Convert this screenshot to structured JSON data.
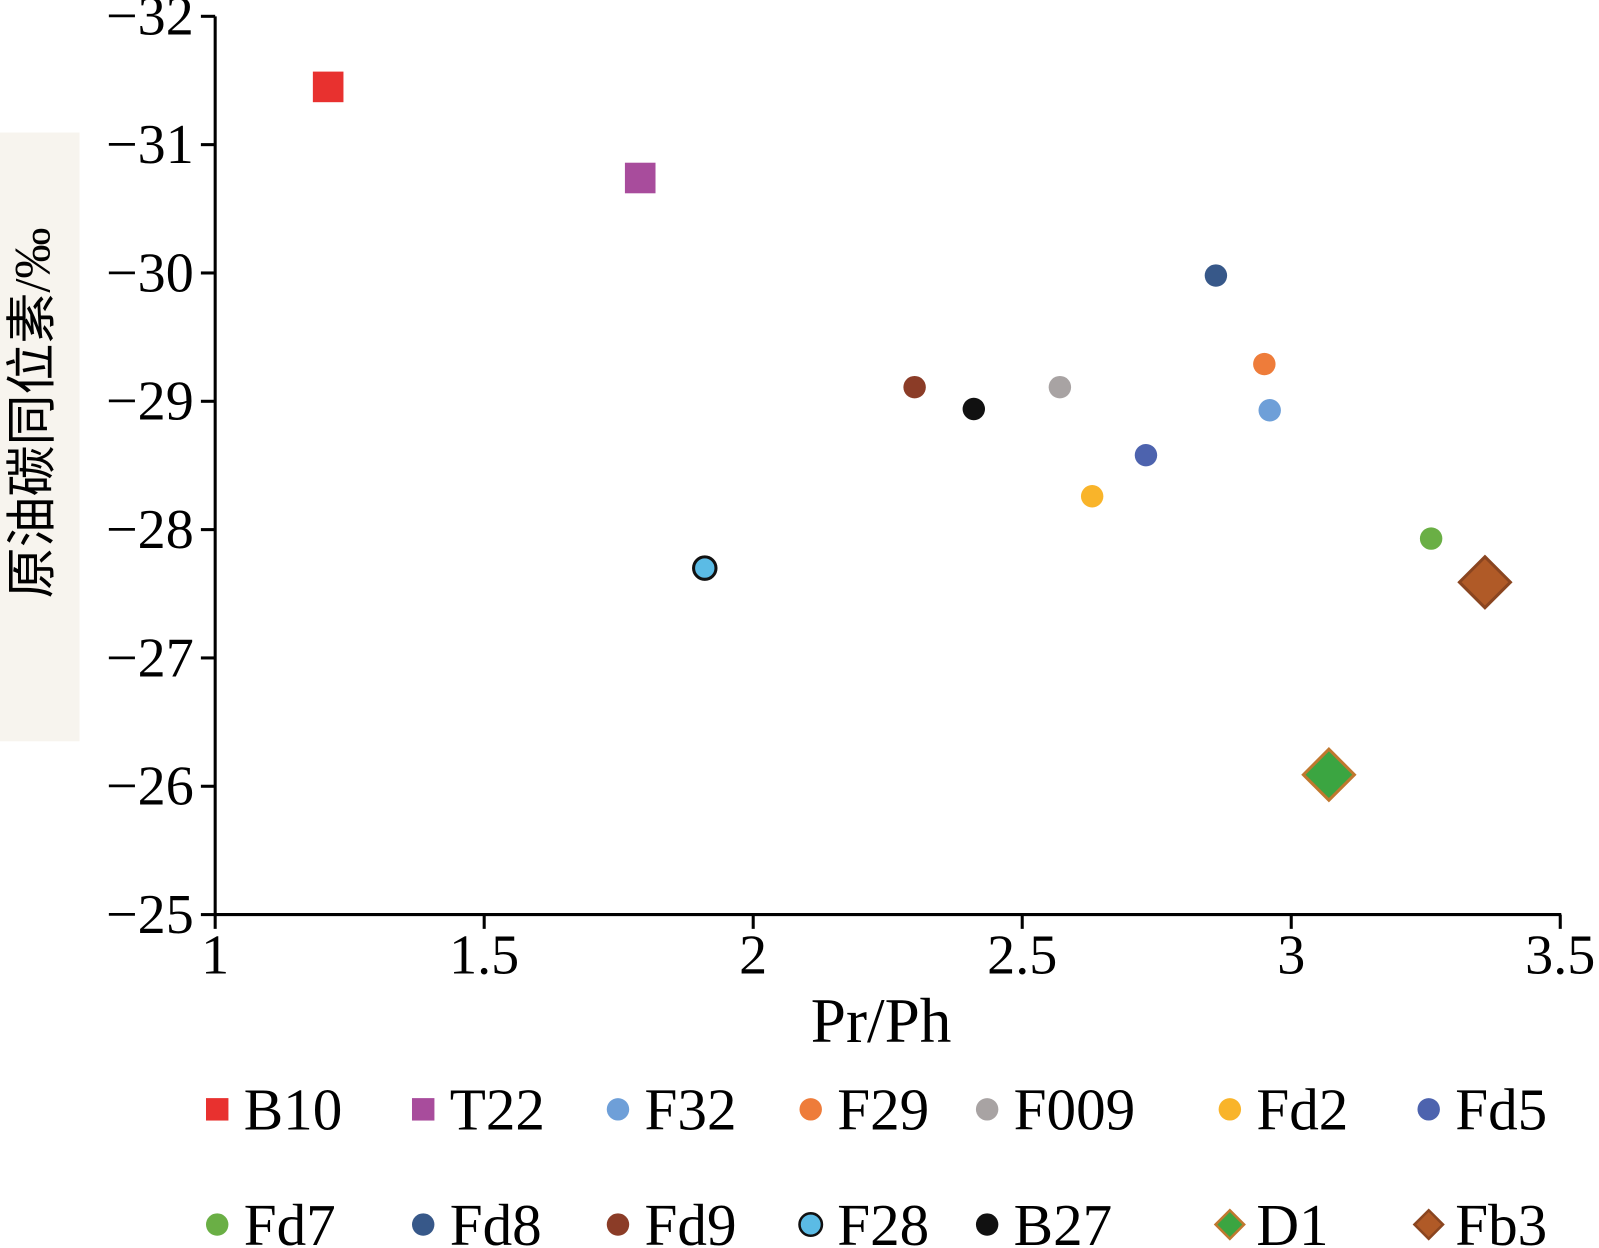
{
  "chart_data": {
    "type": "scatter",
    "xlabel": "Pr/Ph",
    "ylabel": "原油碳同位素/‰",
    "xlim": [
      1,
      3.5
    ],
    "ylim": [
      -32,
      -25
    ],
    "y_inverted": true,
    "x_tick_labels": [
      "1",
      "1.5",
      "2",
      "2.5",
      "3",
      "3.5"
    ],
    "y_tick_labels": [
      "−32",
      "−31",
      "−30",
      "−29",
      "−28",
      "−27",
      "−26",
      "−25"
    ],
    "grid": false,
    "legend_position": "bottom",
    "series": [
      {
        "name": "B10",
        "marker": "square",
        "color": "#e8312f",
        "x": 1.21,
        "y": -31.45
      },
      {
        "name": "T22",
        "marker": "square",
        "color": "#a84c9c",
        "x": 1.79,
        "y": -30.74
      },
      {
        "name": "F32",
        "marker": "circle",
        "color": "#6e9fd8",
        "x": 2.96,
        "y": -28.93
      },
      {
        "name": "F29",
        "marker": "circle",
        "color": "#ee7c3a",
        "x": 2.95,
        "y": -29.29
      },
      {
        "name": "F009",
        "marker": "circle",
        "color": "#a8a3a3",
        "x": 2.57,
        "y": -29.11
      },
      {
        "name": "Fd2",
        "marker": "circle",
        "color": "#f9b42a",
        "x": 2.63,
        "y": -28.26
      },
      {
        "name": "Fd5",
        "marker": "circle",
        "color": "#4d63ae",
        "x": 2.73,
        "y": -28.58
      },
      {
        "name": "Fd7",
        "marker": "circle",
        "color": "#6aaf45",
        "x": 3.26,
        "y": -27.93
      },
      {
        "name": "Fd8",
        "marker": "circle",
        "color": "#375889",
        "x": 2.86,
        "y": -29.98
      },
      {
        "name": "Fd9",
        "marker": "circle",
        "color": "#8b3c27",
        "x": 2.3,
        "y": -29.11
      },
      {
        "name": "F28",
        "marker": "circle",
        "color": "#5bbbe5",
        "edge_color": "#111111",
        "x": 1.91,
        "y": -27.7
      },
      {
        "name": "B27",
        "marker": "circle",
        "color": "#111111",
        "x": 2.41,
        "y": -28.94
      },
      {
        "name": "D1",
        "marker": "diamond",
        "color": "#3ba541",
        "edge_color": "#c0782f",
        "x": 3.07,
        "y": -26.09
      },
      {
        "name": "Fb3",
        "marker": "diamond",
        "color": "#b05a27",
        "edge_color": "#8a4520",
        "x": 3.36,
        "y": -27.59
      }
    ]
  }
}
